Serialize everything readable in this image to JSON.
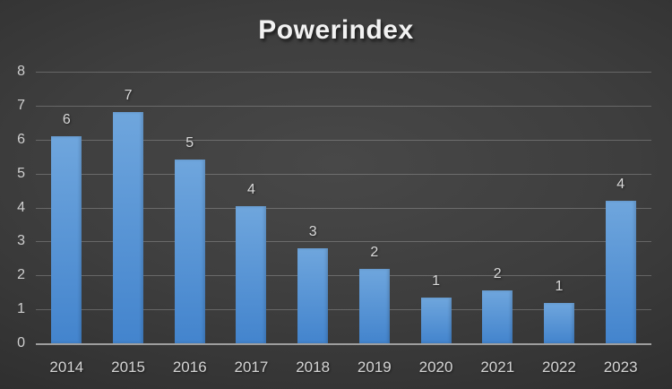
{
  "title": "Powerindex",
  "colors": {
    "bar_top": "#6FA6DD",
    "bar_bottom": "#4384CD",
    "axis_line": "#9E9E9E",
    "gridline": "rgba(255,255,255,0.22)",
    "tick_label_color": "#CFCFCF",
    "data_label_color": "#D9D9D9",
    "title_color": "#F2F2F2",
    "background_center": "#484848",
    "background_edge": "#242424"
  },
  "chart_data": {
    "type": "bar",
    "title": "Powerindex",
    "categories": [
      "2014",
      "2015",
      "2016",
      "2017",
      "2018",
      "2019",
      "2020",
      "2021",
      "2022",
      "2023"
    ],
    "values": [
      6.1,
      6.8,
      5.4,
      4.05,
      2.8,
      2.2,
      1.35,
      1.55,
      1.2,
      4.2
    ],
    "data_labels": [
      "6",
      "7",
      "5",
      "4",
      "3",
      "2",
      "1",
      "2",
      "1",
      "4"
    ],
    "xlabel": "",
    "ylabel": "",
    "ylim": [
      0,
      8
    ],
    "ytick_step": 1,
    "yticks": [
      "0",
      "1",
      "2",
      "3",
      "4",
      "5",
      "6",
      "7",
      "8"
    ],
    "grid": true,
    "legend": false
  }
}
